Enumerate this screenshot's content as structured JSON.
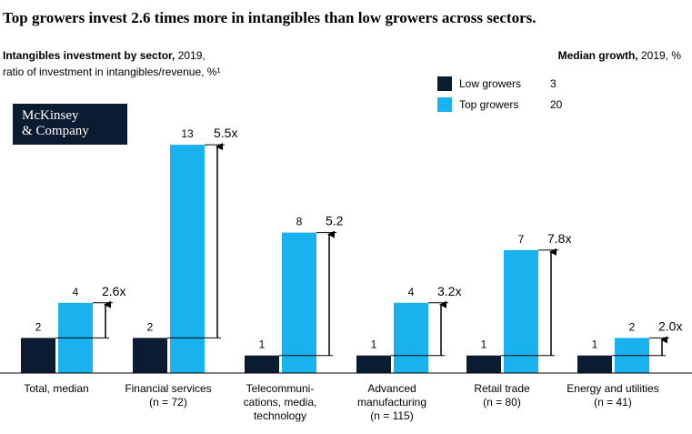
{
  "title": "Top growers invest 2.6 times more in intangibles than low growers across sectors.",
  "subtitle": {
    "bold": "Intangibles investment by sector,",
    "rest": " 2019,",
    "line2": "ratio of investment in intangibles/revenue, %¹"
  },
  "median_header": {
    "bold": "Median growth,",
    "rest": " 2019, %"
  },
  "legend": [
    {
      "label": "Low growers",
      "value": "3",
      "color": "#0b1b31"
    },
    {
      "label": "Top growers",
      "value": "20",
      "color": "#1ab2ee"
    }
  ],
  "logo": {
    "line1": "McKinsey",
    "line2": "& Company"
  },
  "colors": {
    "low": "#0b1b31",
    "top": "#1ab2ee"
  },
  "chart_data": {
    "type": "bar",
    "categories": [
      [
        "Total, median"
      ],
      [
        "Financial services",
        "(n = 72)"
      ],
      [
        "Telecommuni-",
        "cations, media,",
        "technology"
      ],
      [
        "Advanced",
        "manufacturing",
        "(n = 115)"
      ],
      [
        "Retail trade",
        "(n = 80)"
      ],
      [
        "Energy and utilities",
        "(n = 41)"
      ]
    ],
    "series": [
      {
        "name": "Low growers",
        "values": [
          2,
          2,
          1,
          1,
          1,
          1
        ]
      },
      {
        "name": "Top growers",
        "values": [
          4,
          13,
          8,
          4,
          7,
          2
        ]
      }
    ],
    "ratios": [
      "2.6x",
      "5.5x",
      "5.2",
      "3.2x",
      "7.8x",
      "2.0x"
    ],
    "ylim": [
      0,
      13
    ]
  }
}
